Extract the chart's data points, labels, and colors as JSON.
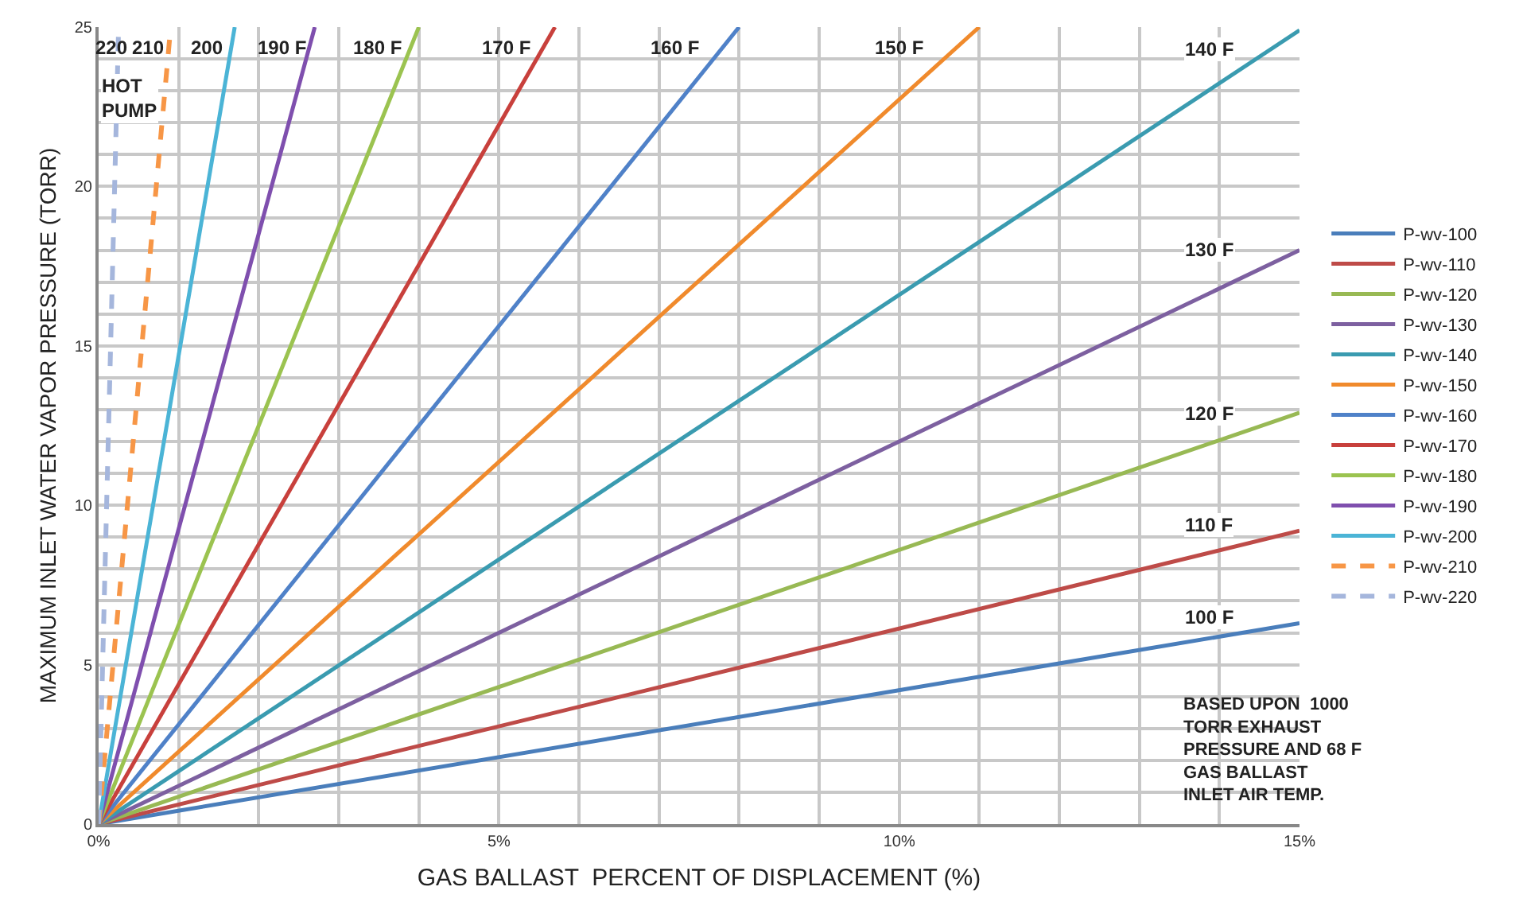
{
  "chart_data": {
    "type": "line",
    "xlabel": "GAS BALLAST  PERCENT OF DISPLACEMENT (%)",
    "ylabel": "MAXIMUM INLET WATER VAPOR PRESSURE (TORR)",
    "xlim": [
      0,
      15
    ],
    "ylim": [
      0,
      25
    ],
    "xticks": [
      {
        "value": 0,
        "label": "0%"
      },
      {
        "value": 1,
        "label": null
      },
      {
        "value": 2,
        "label": null
      },
      {
        "value": 3,
        "label": null
      },
      {
        "value": 4,
        "label": null
      },
      {
        "value": 5,
        "label": "5%"
      },
      {
        "value": 6,
        "label": null
      },
      {
        "value": 7,
        "label": null
      },
      {
        "value": 8,
        "label": null
      },
      {
        "value": 9,
        "label": null
      },
      {
        "value": 10,
        "label": "10%"
      },
      {
        "value": 11,
        "label": null
      },
      {
        "value": 12,
        "label": null
      },
      {
        "value": 13,
        "label": null
      },
      {
        "value": 14,
        "label": null
      },
      {
        "value": 15,
        "label": "15%"
      }
    ],
    "yticks": [
      0,
      {
        "value": 1,
        "label": null
      },
      {
        "value": 2,
        "label": null
      },
      {
        "value": 3,
        "label": null
      },
      {
        "value": 4,
        "label": null
      },
      5,
      {
        "value": 6,
        "label": null
      },
      {
        "value": 7,
        "label": null
      },
      {
        "value": 8,
        "label": null
      },
      {
        "value": 9,
        "label": null
      },
      10,
      {
        "value": 11,
        "label": null
      },
      {
        "value": 12,
        "label": null
      },
      {
        "value": 13,
        "label": null
      },
      {
        "value": 14,
        "label": null
      },
      15,
      {
        "value": 16,
        "label": null
      },
      {
        "value": 17,
        "label": null
      },
      {
        "value": 18,
        "label": null
      },
      {
        "value": 19,
        "label": null
      },
      20,
      {
        "value": 21,
        "label": null
      },
      {
        "value": 22,
        "label": null
      },
      {
        "value": 23,
        "label": null
      },
      {
        "value": 24,
        "label": null
      },
      25
    ],
    "grid": true,
    "legend": "right",
    "marker": "none",
    "series": [
      {
        "name": "P-wv-100",
        "color": "#4a7ebb",
        "x": [
          0,
          15
        ],
        "values": [
          0,
          6.3
        ]
      },
      {
        "name": "P-wv-110",
        "color": "#be4b48",
        "x": [
          0,
          15
        ],
        "values": [
          0,
          9.2
        ]
      },
      {
        "name": "P-wv-120",
        "color": "#98b954",
        "x": [
          0,
          15
        ],
        "values": [
          0,
          12.9
        ]
      },
      {
        "name": "P-wv-130",
        "color": "#7d60a0",
        "x": [
          0,
          15
        ],
        "values": [
          0,
          18.0
        ]
      },
      {
        "name": "P-wv-140",
        "color": "#3a9bb0",
        "x": [
          0,
          15
        ],
        "values": [
          0,
          24.9
        ]
      },
      {
        "name": "P-wv-150",
        "color": "#f08a2c",
        "x": [
          0,
          11.0
        ],
        "values": [
          0,
          25
        ]
      },
      {
        "name": "P-wv-160",
        "color": "#4f81c8",
        "x": [
          0,
          8.0
        ],
        "values": [
          0,
          25
        ]
      },
      {
        "name": "P-wv-170",
        "color": "#c8403c",
        "x": [
          0,
          5.7
        ],
        "values": [
          0,
          25
        ]
      },
      {
        "name": "P-wv-180",
        "color": "#9bc350",
        "x": [
          0,
          4.0
        ],
        "values": [
          0,
          25
        ]
      },
      {
        "name": "P-wv-190",
        "color": "#7f4fae",
        "x": [
          0,
          2.7
        ],
        "values": [
          0,
          25
        ]
      },
      {
        "name": "P-wv-200",
        "color": "#4bb4d6",
        "x": [
          0,
          1.7
        ],
        "values": [
          0,
          25
        ]
      },
      {
        "name": "P-wv-210",
        "color": "#f79646",
        "line_style": "dashed",
        "x": [
          0,
          0.9
        ],
        "values": [
          0,
          25
        ]
      },
      {
        "name": "P-wv-220",
        "color": "#a5b6dc",
        "line_style": "dashed",
        "x": [
          0,
          0.25
        ],
        "values": [
          0,
          25
        ]
      }
    ],
    "annotations": [
      "220",
      "210",
      "200",
      "190 F",
      "180 F",
      "170 F",
      "160 F",
      "150 F",
      "140 F",
      "130 F",
      "120 F",
      "110 F",
      "100 F",
      "HOT\nPUMP",
      "BASED UPON  1000\nTORR EXHAUST\nPRESSURE AND 68 F\nGAS BALLAST\nINLET AIR TEMP."
    ]
  }
}
